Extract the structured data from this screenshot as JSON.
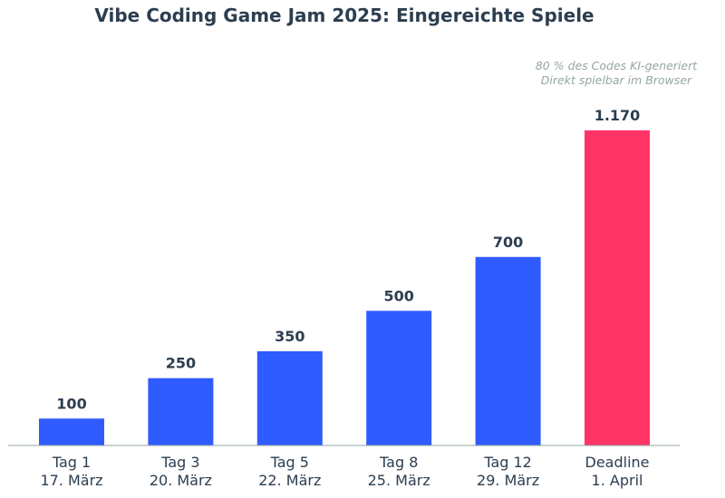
{
  "chart_data": {
    "type": "bar",
    "title": "Vibe Coding Game Jam 2025: Eingereichte Spiele",
    "categories": [
      "Tag 1\n17. März",
      "Tag 3\n20. März",
      "Tag 5\n22. März",
      "Tag 8\n25. März",
      "Tag 12\n29. März",
      "Deadline\n1. April"
    ],
    "values": [
      100,
      250,
      350,
      500,
      700,
      1170
    ],
    "data_labels": [
      "100",
      "250",
      "350",
      "500",
      "700",
      "1.170"
    ],
    "colors": [
      "#2f5bff",
      "#2f5bff",
      "#2f5bff",
      "#2f5bff",
      "#2f5bff",
      "#ff3366"
    ],
    "annotations": [
      "80 % des Codes KI-generiert",
      "Direkt spielbar im Browser"
    ],
    "xlabel": "",
    "ylabel": "",
    "ylim": [
      0,
      1170
    ],
    "grid": false
  }
}
